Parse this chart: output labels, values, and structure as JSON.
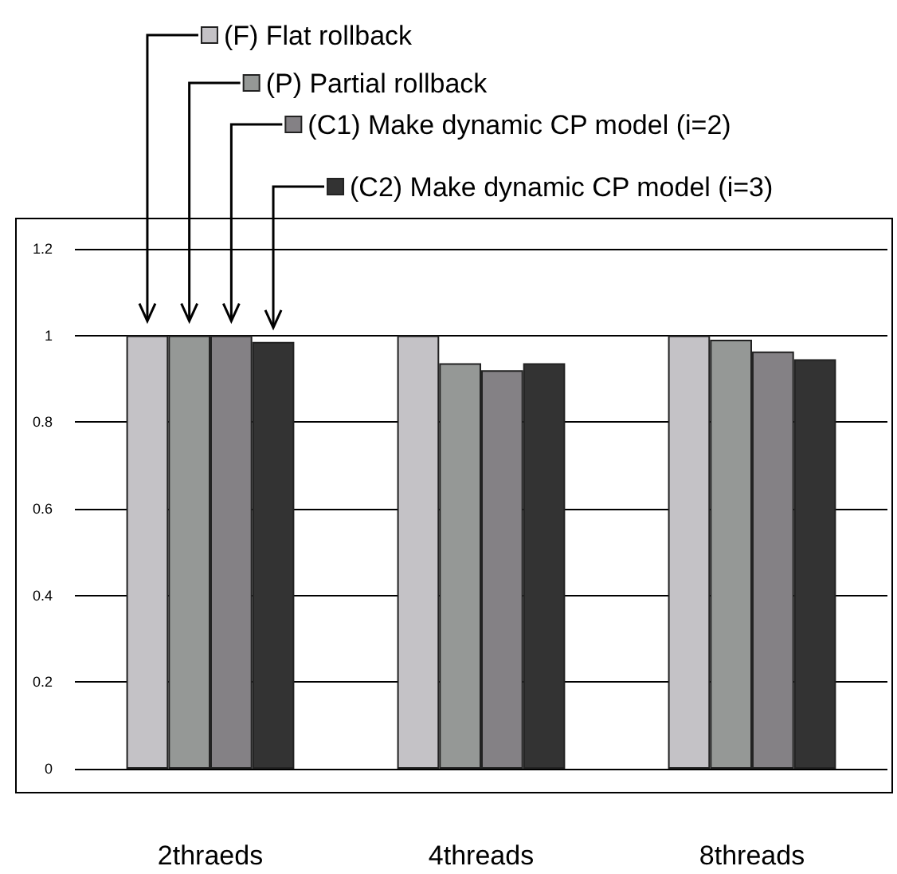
{
  "chart_data": {
    "type": "bar",
    "categories": [
      "2thraeds",
      "4threads",
      "8threads"
    ],
    "series": [
      {
        "name": "(F) Flat rollback",
        "color": "#c4c2c6",
        "values": [
          1,
          1,
          1
        ]
      },
      {
        "name": "(P) Partial rollback",
        "color": "#959896",
        "values": [
          1,
          0.936,
          0.99
        ]
      },
      {
        "name": "(C1) Make dynamic CP model (i=2)",
        "color": "#848185",
        "values": [
          1,
          0.92,
          0.963
        ]
      },
      {
        "name": "(C2) Make dynamic CP model (i=3)",
        "color": "#333333",
        "values": [
          0.985,
          0.936,
          0.945
        ]
      }
    ],
    "ylim": [
      0,
      1.2
    ],
    "yticks": [
      0,
      0.2,
      0.4,
      0.6,
      0.8,
      1,
      1.2
    ],
    "grid": "y",
    "legend": "top right"
  }
}
